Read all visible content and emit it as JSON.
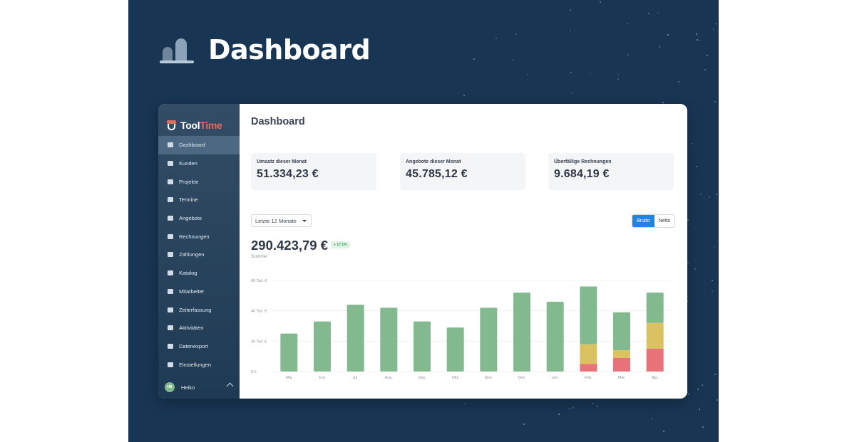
{
  "hero": {
    "title": "Dashboard",
    "icon": "bar-chart-icon"
  },
  "app": {
    "brand_main": "Tool",
    "brand_accent": "Time",
    "brand_accent_color": "#e66a5f"
  },
  "sidebar": {
    "items": [
      {
        "label": "Dashboard",
        "icon": "dashboard-icon",
        "active": true
      },
      {
        "label": "Kunden",
        "icon": "customers-icon"
      },
      {
        "label": "Projekte",
        "icon": "folder-icon"
      },
      {
        "label": "Termine",
        "icon": "calendar-icon"
      },
      {
        "label": "Angebote",
        "icon": "document-icon"
      },
      {
        "label": "Rechnungen",
        "icon": "invoice-icon"
      },
      {
        "label": "Zahlungen",
        "icon": "payment-icon"
      },
      {
        "label": "Katalog",
        "icon": "book-icon"
      },
      {
        "label": "Mitarbeiter",
        "icon": "employees-icon"
      },
      {
        "label": "Zeiterfassung",
        "icon": "stopwatch-icon"
      },
      {
        "label": "Aktivitäten",
        "icon": "activity-icon"
      },
      {
        "label": "Datenexport",
        "icon": "download-icon"
      },
      {
        "label": "Einstellungen",
        "icon": "settings-icon"
      }
    ],
    "user": {
      "initials": "HB",
      "name": "Heiko"
    }
  },
  "main": {
    "title": "Dashboard",
    "kpis": [
      {
        "label": "Umsatz dieser Monat",
        "value": "51.334,23 €"
      },
      {
        "label": "Angebote dieser Monat",
        "value": "45.785,12 €"
      },
      {
        "label": "Überfällige Rechnungen",
        "value": "9.684,19 €"
      }
    ],
    "period": "Letzte 12 Monate",
    "toggle": {
      "gross": "Brutto",
      "net": "Netto",
      "selected": "Brutto"
    },
    "total": "290.423,79 €",
    "delta": "+ 17.1%",
    "total_label": "Summe"
  },
  "colors": {
    "paid": "#83b98f",
    "pending": "#d9c25f",
    "overdue": "#e8727a",
    "accent": "#1f86e0"
  },
  "chart_data": {
    "type": "bar",
    "stacked": true,
    "categories": [
      "Mai",
      "Jun.",
      "Jul.",
      "Aug.",
      "Sep.",
      "Okt.",
      "Nov.",
      "Dez.",
      "Jan.",
      "Feb.",
      "Mär.",
      "Apr."
    ],
    "series": [
      {
        "color": "#e8727a",
        "values": [
          0,
          0,
          0,
          0,
          0,
          0,
          0,
          0,
          0,
          5,
          9,
          15
        ]
      },
      {
        "color": "#d9c25f",
        "values": [
          0,
          0,
          0,
          0,
          0,
          0,
          0,
          0,
          0,
          13,
          5,
          17
        ]
      },
      {
        "color": "#83b98f",
        "values": [
          25,
          33,
          44,
          42,
          33,
          29,
          42,
          52,
          46,
          38,
          25,
          20
        ]
      }
    ],
    "yticks": [
      "0 €",
      "20 Tsd. €",
      "40 Tsd. €",
      "60 Tsd. €"
    ],
    "ytick_values": [
      0,
      20,
      40,
      60
    ],
    "ylim": [
      0,
      60
    ],
    "grid": true
  }
}
